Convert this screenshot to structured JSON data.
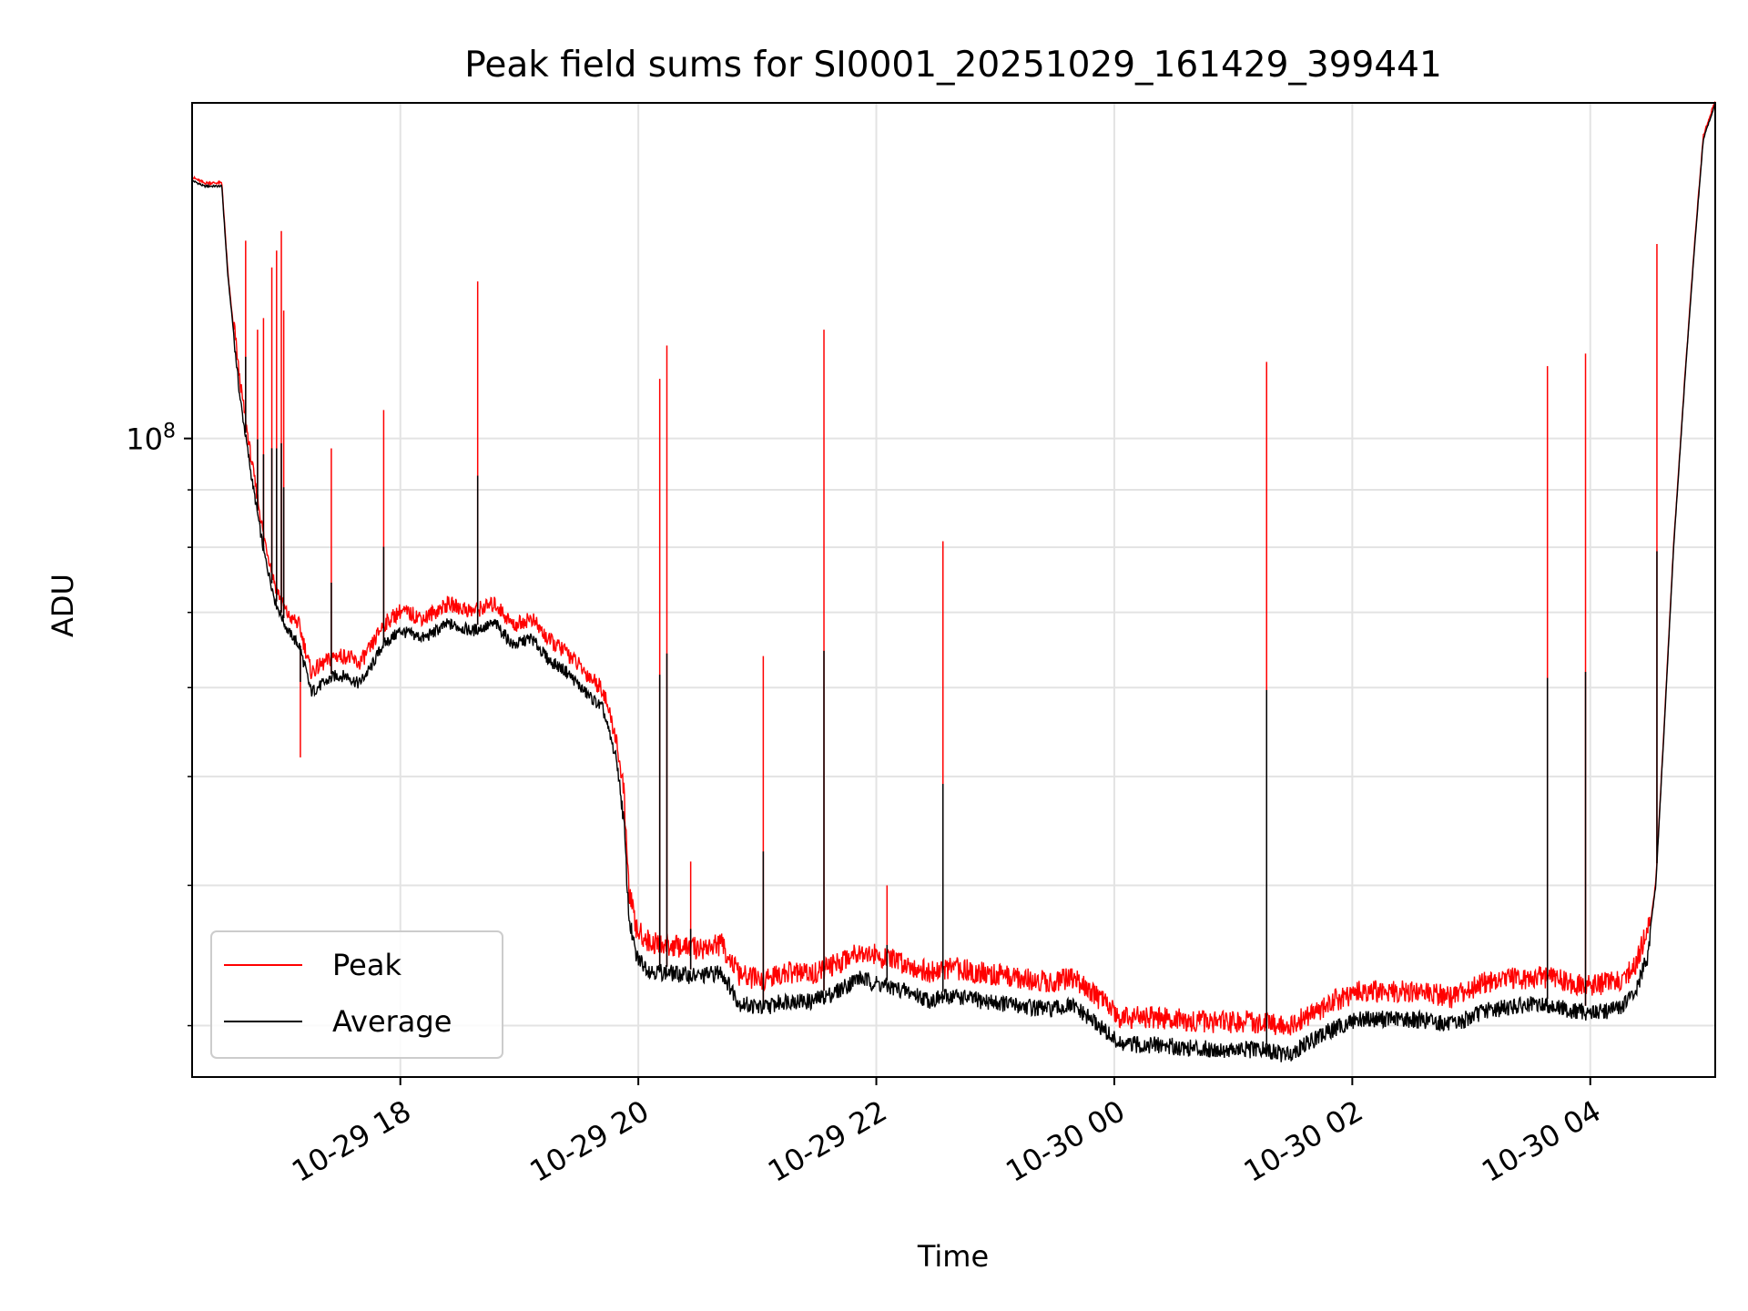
{
  "chart_data": {
    "type": "line",
    "title": "Peak field sums for SI0001_20251029_161429_399441",
    "xlabel": "Time",
    "ylabel": "ADU",
    "y_scale": "log",
    "ylim": [
      27000000,
      199000000
    ],
    "xlim_hours": [
      -7.75,
      5.05
    ],
    "x_tick_labels": [
      "10-29 18",
      "10-29 20",
      "10-29 22",
      "10-30 00",
      "10-30 02",
      "10-30 04"
    ],
    "x_tick_hours": [
      -6,
      -4,
      -2,
      0,
      2,
      4
    ],
    "y_major_tick": {
      "value": 100000000,
      "base": "10",
      "exponent": "8"
    },
    "y_minor_ticks": [
      30000000,
      40000000,
      50000000,
      60000000,
      70000000,
      80000000,
      90000000
    ],
    "grid": true,
    "legend": {
      "position": "lower-left",
      "entries": [
        {
          "label": "Peak",
          "color": "#ff0000"
        },
        {
          "label": "Average",
          "color": "#000000"
        }
      ]
    },
    "colors": {
      "peak": "#ff0000",
      "average": "#000000"
    },
    "baseline": [
      [
        -7.75,
        170
      ],
      [
        -7.65,
        168
      ],
      [
        -7.5,
        168
      ],
      [
        -7.45,
        140
      ],
      [
        -7.35,
        110
      ],
      [
        -7.25,
        93
      ],
      [
        -7.15,
        80
      ],
      [
        -7.05,
        72
      ],
      [
        -6.95,
        68
      ],
      [
        -6.85,
        66
      ],
      [
        -6.8,
        63
      ],
      [
        -6.75,
        60
      ],
      [
        -6.65,
        61
      ],
      [
        -6.55,
        62
      ],
      [
        -6.45,
        62
      ],
      [
        -6.35,
        61
      ],
      [
        -6.25,
        63
      ],
      [
        -6.15,
        66
      ],
      [
        -6.0,
        68
      ],
      [
        -5.8,
        67
      ],
      [
        -5.6,
        69
      ],
      [
        -5.4,
        68
      ],
      [
        -5.2,
        69
      ],
      [
        -5.05,
        66
      ],
      [
        -4.9,
        67
      ],
      [
        -4.75,
        64
      ],
      [
        -4.6,
        62.5
      ],
      [
        -4.45,
        60
      ],
      [
        -4.3,
        58
      ],
      [
        -4.18,
        52
      ],
      [
        -4.12,
        46
      ],
      [
        -4.08,
        38
      ],
      [
        -4.02,
        35
      ],
      [
        -3.9,
        34
      ],
      [
        -3.7,
        33.8
      ],
      [
        -3.5,
        33.6
      ],
      [
        -3.3,
        33.9
      ],
      [
        -3.15,
        31.8
      ],
      [
        -2.95,
        31.5
      ],
      [
        -2.75,
        32
      ],
      [
        -2.55,
        31.9
      ],
      [
        -2.35,
        32.5
      ],
      [
        -2.15,
        33.5
      ],
      [
        -1.95,
        33
      ],
      [
        -1.75,
        32.6
      ],
      [
        -1.55,
        32
      ],
      [
        -1.35,
        32.3
      ],
      [
        -1.15,
        32
      ],
      [
        -0.95,
        31.8
      ],
      [
        -0.75,
        31.6
      ],
      [
        -0.55,
        31.4
      ],
      [
        -0.35,
        31.6
      ],
      [
        -0.15,
        30.5
      ],
      [
        0.05,
        29.2
      ],
      [
        0.35,
        29.2
      ],
      [
        0.65,
        29
      ],
      [
        0.95,
        28.9
      ],
      [
        1.25,
        28.9
      ],
      [
        1.45,
        28.6
      ],
      [
        1.65,
        29.4
      ],
      [
        1.85,
        30.2
      ],
      [
        2.05,
        30.8
      ],
      [
        2.35,
        30.8
      ],
      [
        2.65,
        30.7
      ],
      [
        2.85,
        30.4
      ],
      [
        3.1,
        31.3
      ],
      [
        3.35,
        31.6
      ],
      [
        3.65,
        31.7
      ],
      [
        3.85,
        31.3
      ],
      [
        4.05,
        31.2
      ],
      [
        4.25,
        31.5
      ],
      [
        4.38,
        32.5
      ],
      [
        4.48,
        35
      ],
      [
        4.55,
        40
      ],
      [
        4.62,
        55
      ],
      [
        4.7,
        80
      ],
      [
        4.8,
        115
      ],
      [
        4.88,
        150
      ],
      [
        4.95,
        185
      ],
      [
        5.05,
        199
      ]
    ],
    "peak_spikes": [
      {
        "hours": -7.3,
        "value": 150
      },
      {
        "hours": -7.2,
        "value": 125
      },
      {
        "hours": -7.15,
        "value": 128
      },
      {
        "hours": -7.08,
        "value": 142
      },
      {
        "hours": -7.04,
        "value": 147
      },
      {
        "hours": -7.0,
        "value": 153
      },
      {
        "hours": -6.98,
        "value": 130
      },
      {
        "hours": -6.84,
        "value": 52
      },
      {
        "hours": -6.58,
        "value": 98
      },
      {
        "hours": -6.14,
        "value": 106
      },
      {
        "hours": -5.35,
        "value": 138
      },
      {
        "hours": -3.82,
        "value": 113
      },
      {
        "hours": -3.76,
        "value": 121
      },
      {
        "hours": -3.56,
        "value": 42
      },
      {
        "hours": -2.95,
        "value": 64
      },
      {
        "hours": -2.44,
        "value": 125
      },
      {
        "hours": -1.91,
        "value": 40
      },
      {
        "hours": -1.44,
        "value": 81
      },
      {
        "hours": 1.28,
        "value": 117
      },
      {
        "hours": 3.64,
        "value": 116
      },
      {
        "hours": 3.96,
        "value": 119
      },
      {
        "hours": 4.56,
        "value": 149
      }
    ]
  }
}
